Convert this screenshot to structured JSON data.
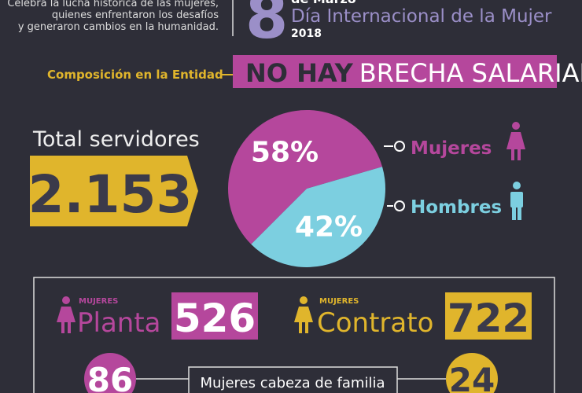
{
  "header": {
    "intro": [
      "Celebra la lucha histórica de las mujeres,",
      "quienes enfrentaron los desafíos",
      "y generaron cambios en la humanidad."
    ],
    "day": "8",
    "month": "de Marzo",
    "event": "Día Internacional de la Mujer",
    "year": "2018"
  },
  "section": {
    "title": "Composición en la Entidad",
    "banner_strong": "NO HAY",
    "banner_rest": "BRECHA SALARIAL"
  },
  "total": {
    "label": "Total servidores",
    "value": "2.153"
  },
  "chart_data": {
    "type": "pie",
    "categories": [
      "Mujeres",
      "Hombres"
    ],
    "values": [
      58,
      42
    ],
    "value_labels": [
      "58%",
      "42%"
    ],
    "colors": [
      "#b5479c",
      "#7ccfe0"
    ]
  },
  "details": {
    "planta": {
      "tag": "MUJERES",
      "label": "Planta",
      "value": "526"
    },
    "contrato": {
      "tag": "MUJERES",
      "label": "Contrato",
      "value": "722"
    },
    "cabeza_familia": {
      "label": "Mujeres cabeza de familia",
      "left": "86",
      "right": "24"
    }
  }
}
